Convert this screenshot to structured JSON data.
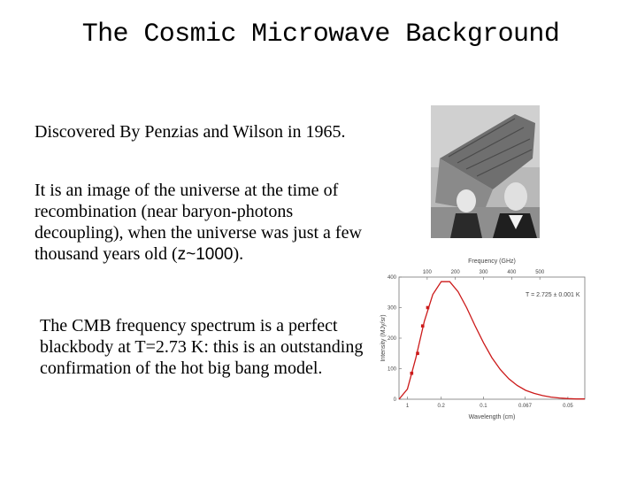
{
  "title": "The Cosmic Microwave Background",
  "paragraphs": {
    "discovery": "Discovered By Penzias and Wilson in 1965.",
    "image_prefix": "It is an image of the universe at the time of recombination (near baryon-photons decoupling), when the universe was just a few thousand years old (",
    "image_redshift": "z~1000",
    "image_suffix": ").",
    "spectrum": "The CMB frequency spectrum is a perfect blackbody at T=2.73 K: this is an outstanding confirmation of the hot big bang model."
  },
  "colors": {
    "curve": "#cc1a1a",
    "points": "#cc1a1a"
  },
  "chart_data": {
    "type": "scatter",
    "x_title": "Wavelength (cm)",
    "x_ticks": [
      "1",
      "0.2",
      "0.1",
      "0.067",
      "0.05"
    ],
    "x_values": [
      1,
      0.2,
      0.1,
      0.067,
      0.05
    ],
    "top_axis_title": "Frequency (GHz)",
    "top_axis_ticks": [
      "100",
      "200",
      "300",
      "400",
      "500"
    ],
    "y_title": "Intensity (MJy/sr)",
    "y_ticks": [
      "0",
      "100",
      "200",
      "300",
      "400"
    ],
    "ylim": [
      0,
      400
    ],
    "annotation": "T = 2.725 ± 0.001 K",
    "series": [
      {
        "wavenumber_per_cm": [
          0,
          1,
          2,
          3,
          4,
          5,
          6,
          7,
          8,
          9,
          10,
          11,
          12,
          13,
          14,
          15,
          16,
          17,
          18,
          19,
          20,
          21,
          22
        ],
        "intensity": [
          0,
          33,
          136,
          255,
          343,
          385,
          385,
          352,
          300,
          241,
          185,
          136,
          97,
          67,
          45,
          29,
          19,
          12,
          7,
          4,
          2,
          1,
          1
        ]
      }
    ],
    "points": {
      "wavenumber_per_cm": [
        1.5,
        2.2,
        2.8,
        3.4
      ],
      "intensity": [
        85,
        150,
        240,
        300
      ]
    }
  }
}
